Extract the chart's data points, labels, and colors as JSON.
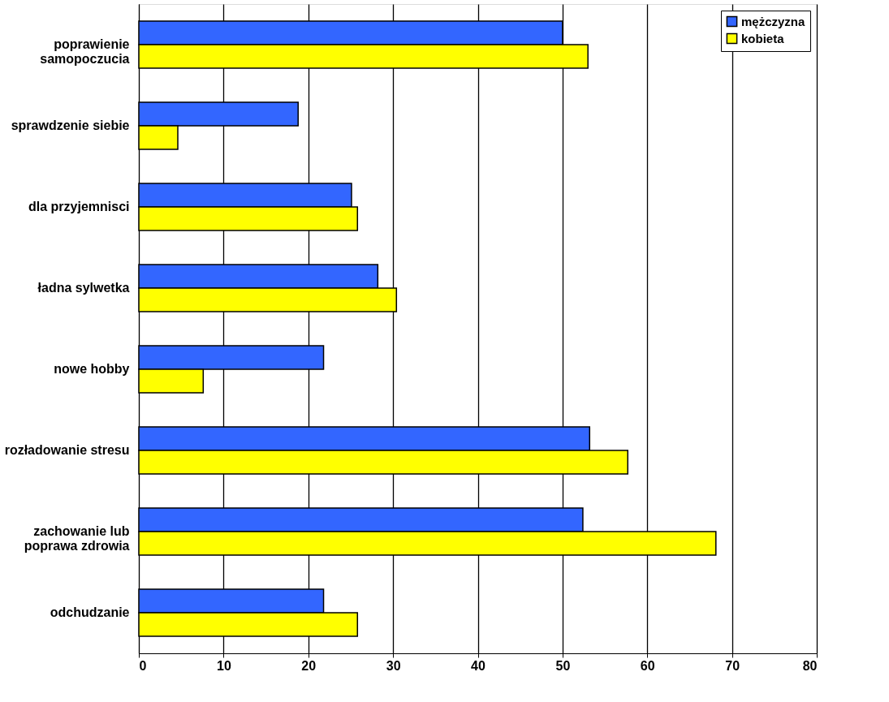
{
  "chart_data": {
    "type": "bar",
    "orientation": "horizontal",
    "categories": [
      "poprawienie\nsamopoczucia",
      "sprawdzenie siebie",
      "dla przyjemnisci",
      "ładna sylwetka",
      "nowe hobby",
      "rozładowanie stresu",
      "zachowanie lub\npoprawa zdrowia",
      "odchudzanie"
    ],
    "series": [
      {
        "name": "mężczyzna",
        "color": "#3366ff",
        "values": [
          50,
          18.8,
          25.1,
          28.2,
          21.8,
          53.2,
          52.4,
          21.8
        ]
      },
      {
        "name": "kobieta",
        "color": "#ffff00",
        "values": [
          53,
          4.6,
          25.8,
          30.4,
          7.6,
          57.7,
          68.1,
          25.8
        ]
      }
    ],
    "xlim": [
      0,
      80
    ],
    "xticks": [
      0,
      10,
      20,
      30,
      40,
      50,
      60,
      70,
      80
    ],
    "grid": "x",
    "legend": "top right"
  }
}
